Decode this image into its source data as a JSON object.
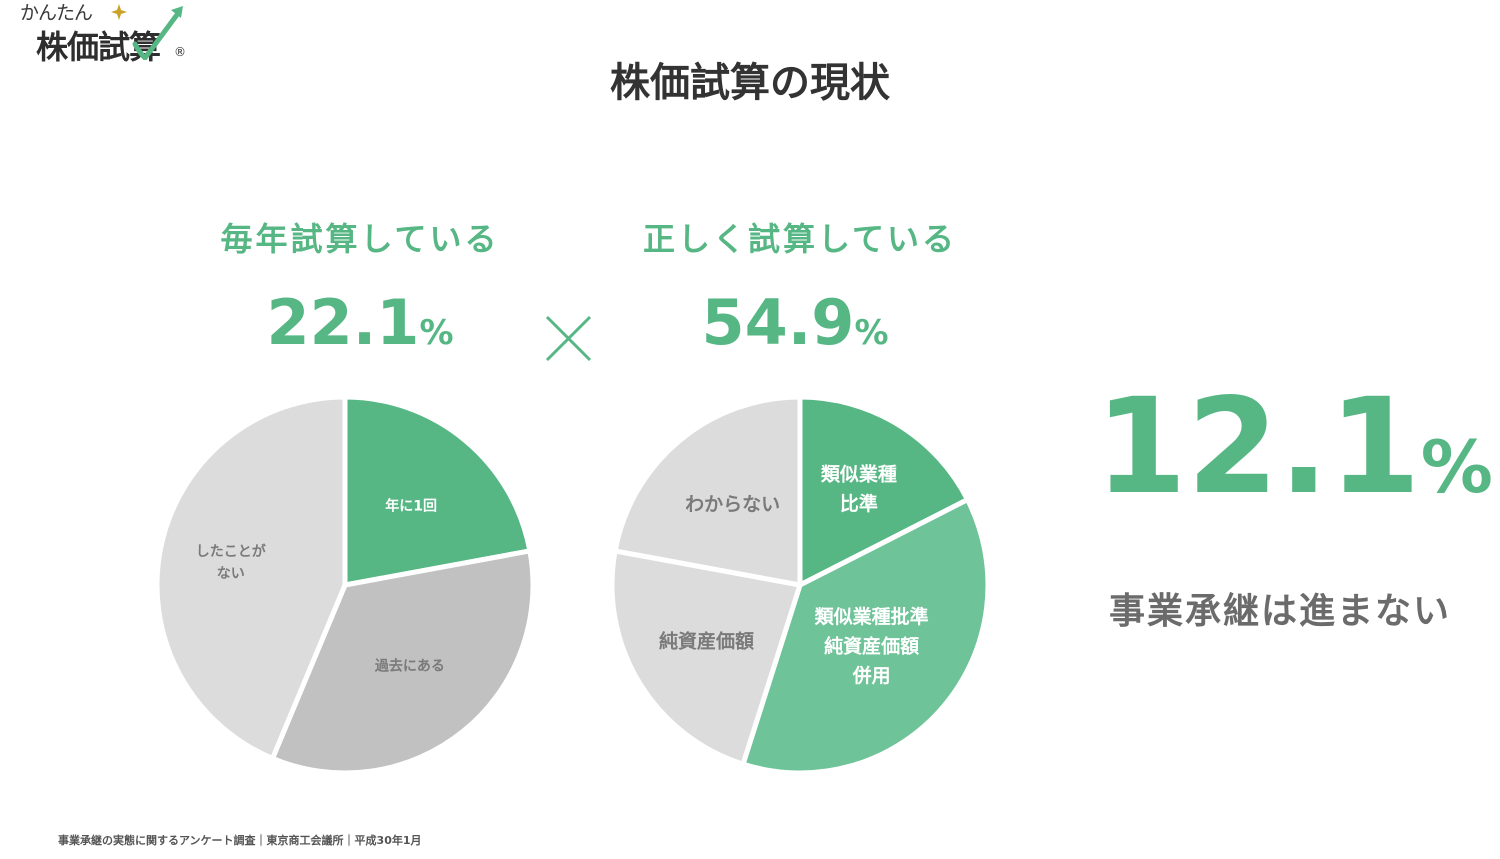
{
  "logo": {
    "small_text": "かんたん",
    "main_text": "株価試算",
    "registered_mark": "®"
  },
  "title": "株価試算の現状",
  "colors": {
    "green": "#56b784",
    "light_green": "#6fc399",
    "light_gray": "#dcdcdc",
    "mid_gray": "#c1c1c1",
    "text_gray": "#6b6b6b"
  },
  "left_panel": {
    "label": "毎年試算している",
    "percent_value": "22.1",
    "percent_unit": "%"
  },
  "operator": "×",
  "right_panel": {
    "label": "正しく試算している",
    "percent_value": "54.9",
    "percent_unit": "%"
  },
  "result": {
    "percent_value": "12.1",
    "percent_unit": "%",
    "caption": "事業承継は進まない"
  },
  "source": "事業承継の実態に関するアンケート調査｜東京商工会議所｜平成30年1月",
  "chart_data": [
    {
      "type": "pie",
      "slices": [
        {
          "label_lines": [
            "年に1回"
          ],
          "value": 22.1,
          "color": "#56b784",
          "label_color": "#ffffff"
        },
        {
          "label_lines": [
            "過去にある"
          ],
          "value": 34.2,
          "color": "#c1c1c1",
          "label_color": "#7a7a7a"
        },
        {
          "label_lines": [
            "したことが",
            "ない"
          ],
          "value": 43.7,
          "color": "#dcdcdc",
          "label_color": "#7a7a7a"
        }
      ]
    },
    {
      "type": "pie",
      "slices": [
        {
          "label_lines": [
            "類似業種",
            "比準"
          ],
          "value": 17.5,
          "color": "#56b784",
          "label_color": "#ffffff"
        },
        {
          "label_lines": [
            "類似業種批準",
            "純資産価額",
            "併用"
          ],
          "value": 37.4,
          "color": "#6fc399",
          "label_color": "#ffffff"
        },
        {
          "label_lines": [
            "純資産価額"
          ],
          "value": 23.0,
          "color": "#dcdcdc",
          "label_color": "#7a7a7a"
        },
        {
          "label_lines": [
            "わからない"
          ],
          "value": 22.1,
          "color": "#dcdcdc",
          "label_color": "#7a7a7a"
        }
      ]
    }
  ]
}
